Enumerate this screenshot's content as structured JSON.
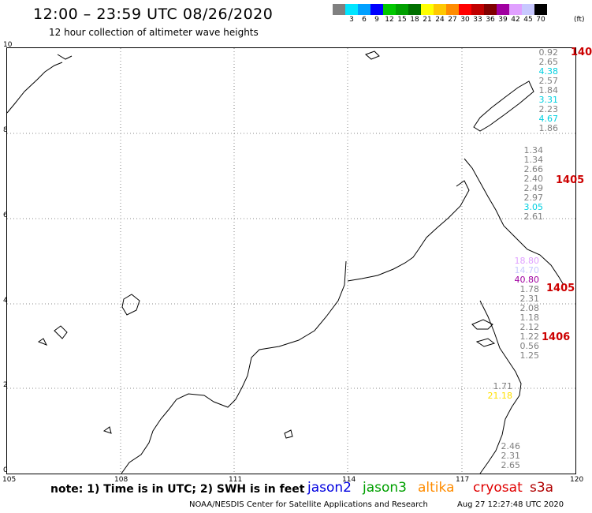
{
  "header": {
    "title": "12:00 – 23:59 UTC 08/26/2020",
    "subtitle": "12 hour collection of altimeter wave heights"
  },
  "legend": {
    "colors": [
      "#808080",
      "#00e5ff",
      "#00a0ff",
      "#0000ff",
      "#00c800",
      "#00a000",
      "#007000",
      "#ffff00",
      "#ffc800",
      "#ff8c00",
      "#ff0000",
      "#c00000",
      "#800000",
      "#a000a0",
      "#e0a0ff",
      "#c8c8ff",
      "#000000"
    ],
    "labels": [
      "3",
      "6",
      "9",
      "12",
      "15",
      "18",
      "21",
      "24",
      "27",
      "30",
      "33",
      "36",
      "39",
      "42",
      "45",
      "70"
    ],
    "unit": "(ft)"
  },
  "axes": {
    "lon": [
      "105",
      "108",
      "111",
      "114",
      "117",
      "120"
    ],
    "lat": [
      "10",
      "8",
      "6",
      "4",
      "2",
      "0"
    ]
  },
  "tracks": [
    {
      "values": [
        {
          "v": "0.92",
          "c": "#808080"
        },
        {
          "v": "2.65",
          "c": "#808080"
        },
        {
          "v": "4.38",
          "c": "#00d0e0"
        },
        {
          "v": "2.57",
          "c": "#808080"
        },
        {
          "v": "1.84",
          "c": "#808080"
        },
        {
          "v": "3.31",
          "c": "#00d0e0"
        },
        {
          "v": "2.23",
          "c": "#808080"
        },
        {
          "v": "4.67",
          "c": "#00d0e0"
        },
        {
          "v": "1.86",
          "c": "#808080"
        }
      ]
    },
    {
      "values": [
        {
          "v": "1.34",
          "c": "#808080"
        },
        {
          "v": "1.34",
          "c": "#808080"
        },
        {
          "v": "2.66",
          "c": "#808080"
        },
        {
          "v": "2.40",
          "c": "#808080"
        },
        {
          "v": "2.49",
          "c": "#808080"
        },
        {
          "v": "2.97",
          "c": "#808080"
        },
        {
          "v": "3.05",
          "c": "#00d0e0"
        },
        {
          "v": "2.61",
          "c": "#808080"
        }
      ]
    },
    {
      "values": [
        {
          "v": "18.80",
          "c": "#e0a0ff"
        },
        {
          "v": "14.70",
          "c": "#c8c8ff"
        },
        {
          "v": "40.80",
          "c": "#a000a0"
        },
        {
          "v": "1.78",
          "c": "#808080"
        },
        {
          "v": "2.31",
          "c": "#808080"
        },
        {
          "v": "2.08",
          "c": "#808080"
        },
        {
          "v": "1.18",
          "c": "#808080"
        },
        {
          "v": "2.12",
          "c": "#808080"
        },
        {
          "v": "1.22",
          "c": "#808080"
        },
        {
          "v": "0.56",
          "c": "#808080"
        },
        {
          "v": "1.25",
          "c": "#808080"
        }
      ]
    },
    {
      "values": [
        {
          "v": "1.71",
          "c": "#808080"
        },
        {
          "v": "21.18",
          "c": "#ffe000"
        }
      ]
    },
    {
      "values": [
        {
          "v": "2.46",
          "c": "#808080"
        },
        {
          "v": "2.31",
          "c": "#808080"
        },
        {
          "v": "2.65",
          "c": "#808080"
        }
      ]
    }
  ],
  "time_ticks": [
    "140",
    "1405",
    "1405",
    "1406"
  ],
  "footer": {
    "note": "note:  1) Time is in UTC;  2) SWH is in feet",
    "satellites": [
      {
        "name": "jason2",
        "color": "#0000e0"
      },
      {
        "name": "jason3",
        "color": "#00a000"
      },
      {
        "name": "altika",
        "color": "#ff8c00"
      },
      {
        "name": "cryosat",
        "color": "#e00000"
      },
      {
        "name": "s3a",
        "color": "#b00000"
      }
    ],
    "credit": "NOAA/NESDIS Center for Satellite Applications and Research",
    "timestamp": "Aug 27 12:27:48 UTC 2020"
  }
}
